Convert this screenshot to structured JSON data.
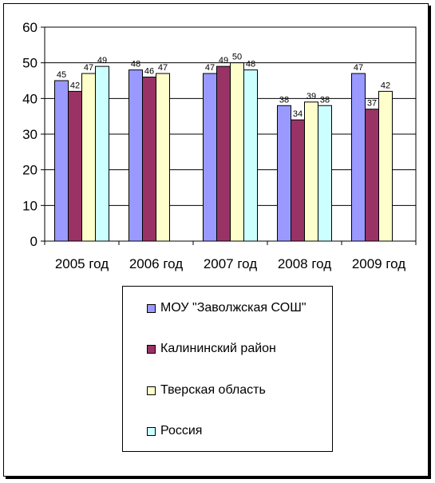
{
  "chart_data": {
    "type": "bar",
    "categories": [
      "2005 год",
      "2006 год",
      "2007 год",
      "2008 год",
      "2009 год"
    ],
    "series": [
      {
        "name": "МОУ \"Заволжская СОШ\"",
        "color": "#9999ff",
        "values": [
          45,
          48,
          47,
          38,
          47
        ]
      },
      {
        "name": "Калининский район",
        "color": "#993366",
        "values": [
          42,
          46,
          49,
          34,
          37
        ]
      },
      {
        "name": "Тверская область",
        "color": "#ffffcc",
        "values": [
          47,
          47,
          50,
          39,
          42
        ]
      },
      {
        "name": "Россия",
        "color": "#ccffff",
        "values": [
          49,
          null,
          48,
          38,
          null
        ]
      }
    ],
    "ylim": [
      0,
      60
    ],
    "yticks": [
      0,
      10,
      20,
      30,
      40,
      50,
      60
    ],
    "grid": true,
    "legend_position": "bottom"
  }
}
